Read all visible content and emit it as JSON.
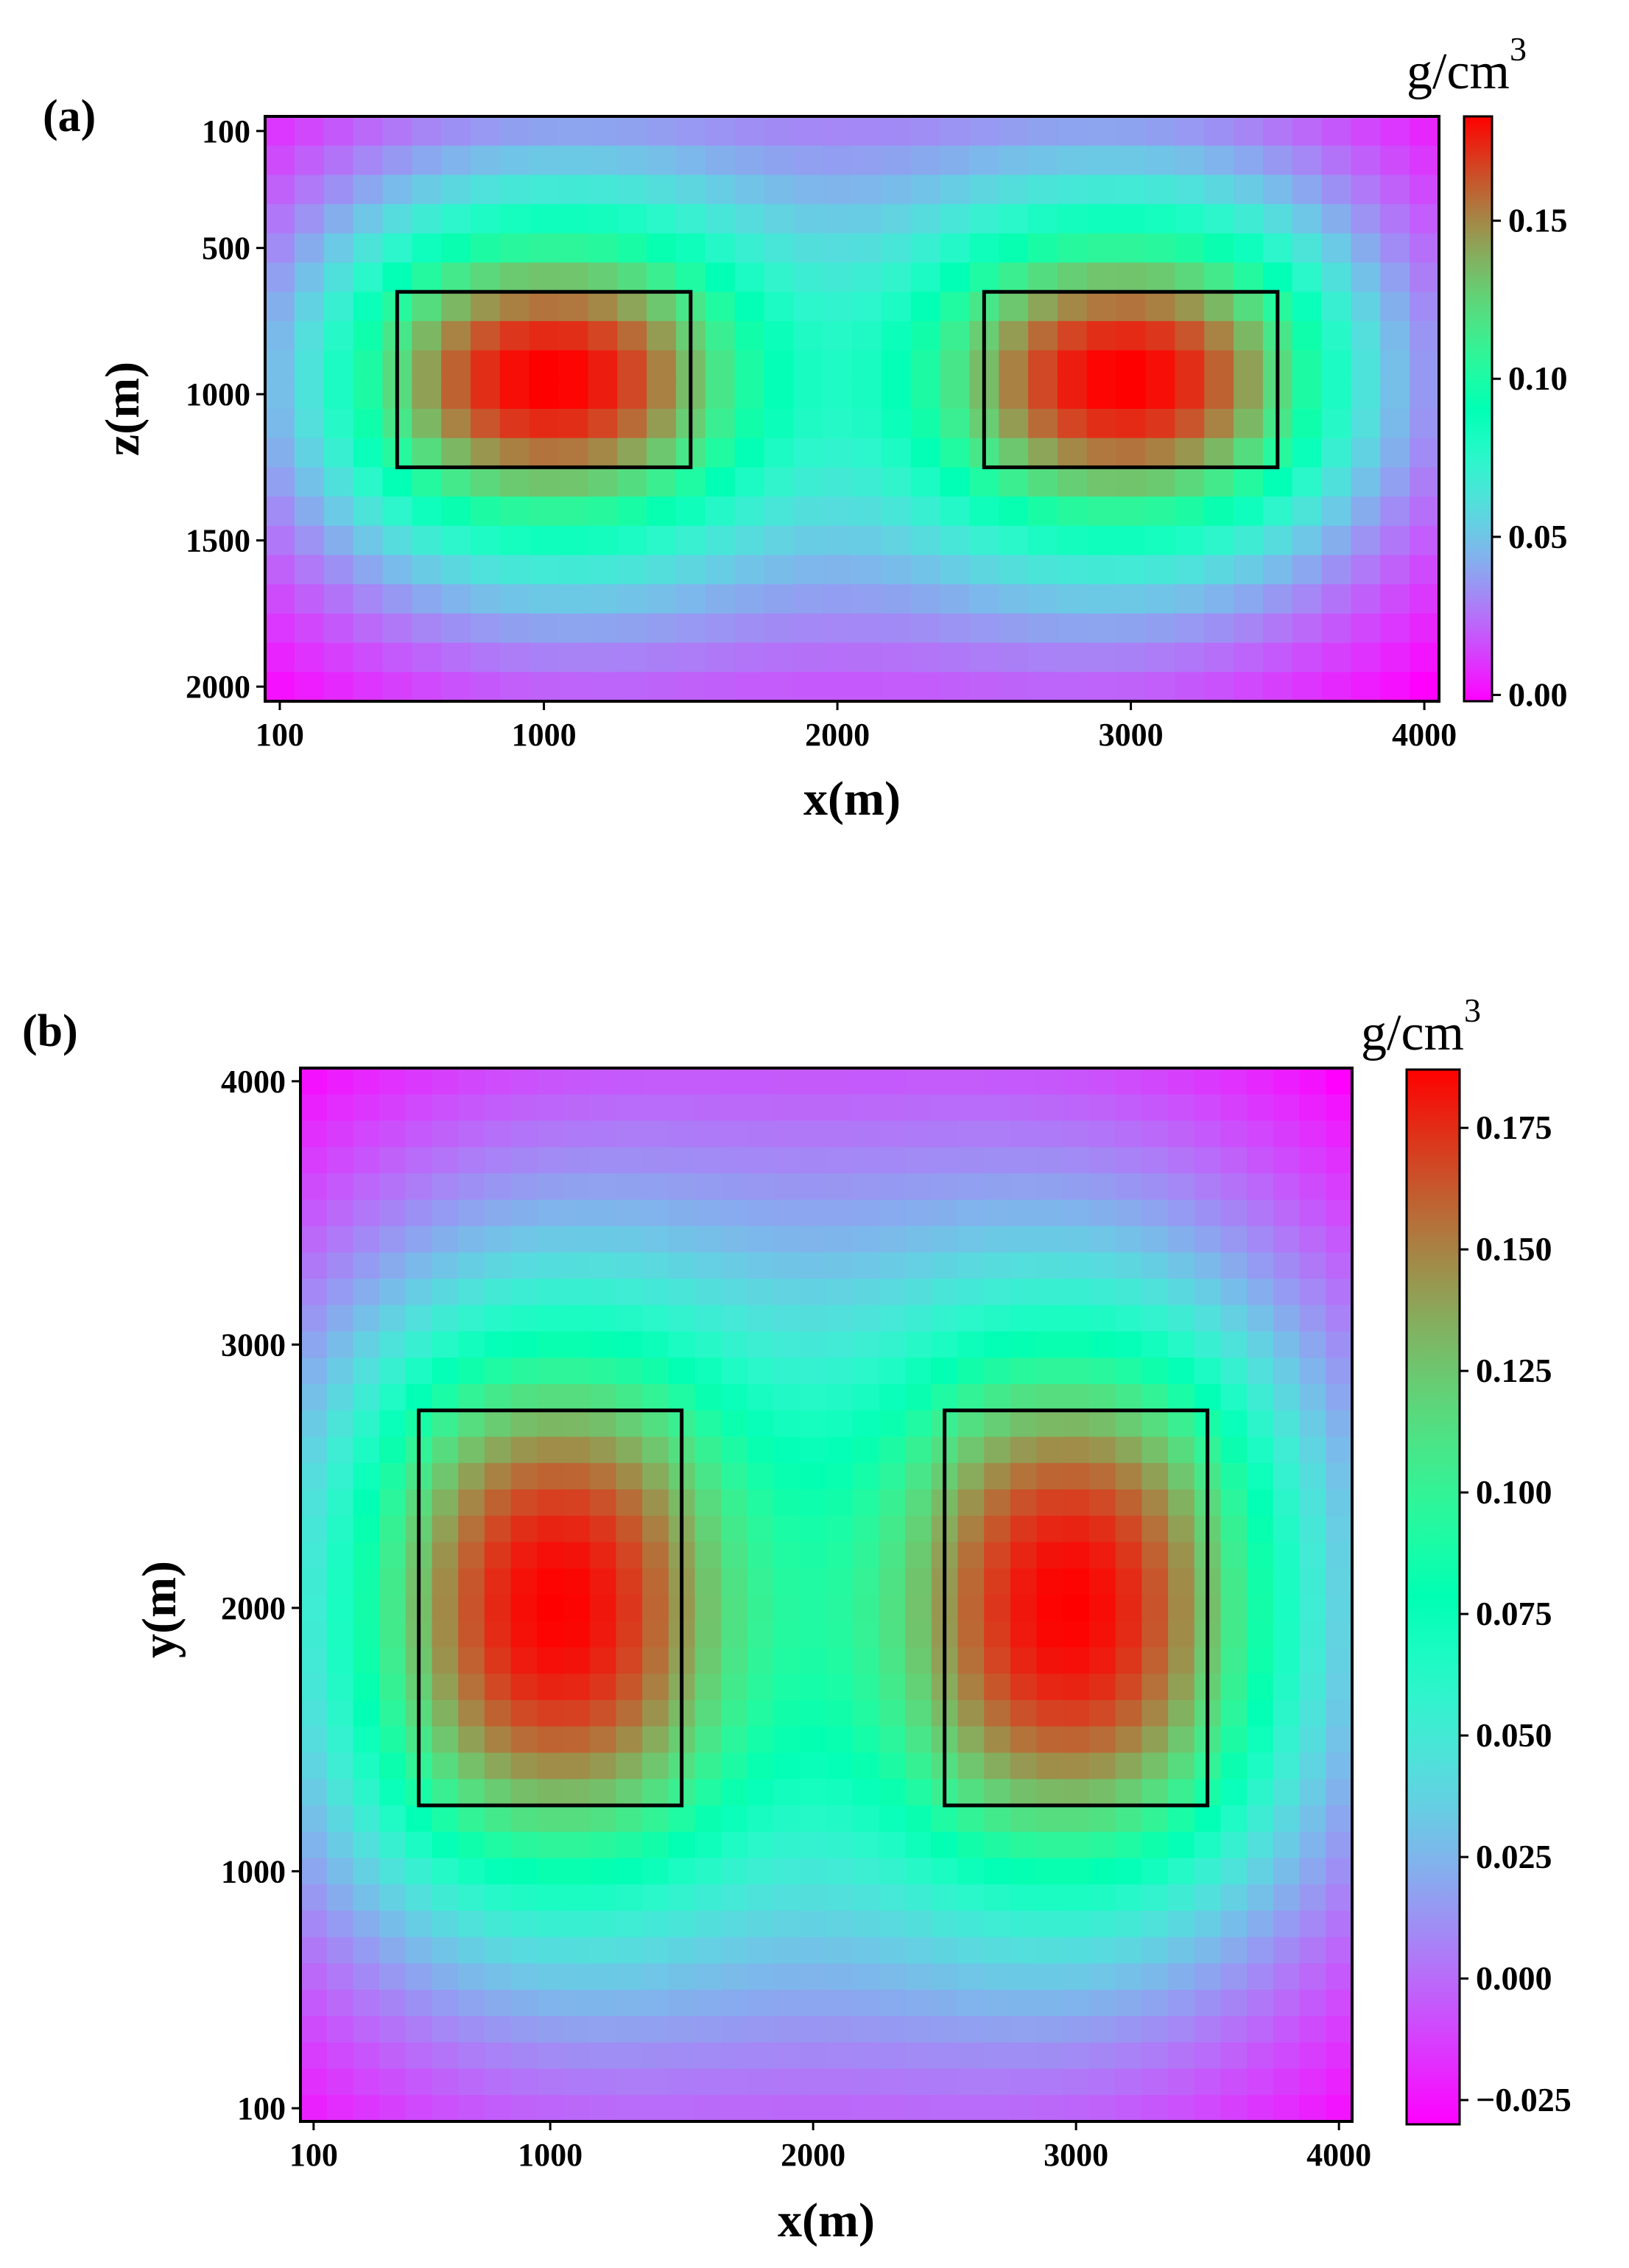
{
  "chart_data": [
    {
      "panel": "(a)",
      "type": "heatmap",
      "xlabel": "x(m)",
      "ylabel": "z(m)",
      "xlim": [
        50,
        4050
      ],
      "ylim": [
        2050,
        50
      ],
      "xticks": [
        100,
        1000,
        2000,
        3000,
        4000
      ],
      "yticks": [
        100,
        500,
        1000,
        1500,
        2000
      ],
      "grid": false,
      "nx": 40,
      "ny": 20,
      "colormap": "rainbow",
      "colorbar": {
        "unit_base": "g/cm",
        "unit_exp": "3",
        "min": -0.002,
        "max": 0.183,
        "ticks": [
          "0.00",
          "0.05",
          "0.10",
          "0.15"
        ]
      },
      "anomaly_bodies": [
        {
          "x": [
            500,
            1500
          ],
          "z": [
            650,
            1250
          ],
          "peak": 0.183
        },
        {
          "x": [
            2500,
            3500
          ],
          "z": [
            650,
            1250
          ],
          "peak": 0.183
        }
      ]
    },
    {
      "panel": "(b)",
      "type": "heatmap",
      "xlabel": "x(m)",
      "ylabel": "y(m)",
      "xlim": [
        50,
        4050
      ],
      "ylim": [
        50,
        4050
      ],
      "xticks": [
        100,
        1000,
        2000,
        3000,
        4000
      ],
      "yticks": [
        100,
        1000,
        2000,
        3000,
        4000
      ],
      "grid": false,
      "nx": 40,
      "ny": 40,
      "colormap": "rainbow",
      "colorbar": {
        "unit_base": "g/cm",
        "unit_exp": "3",
        "min": -0.03,
        "max": 0.187,
        "ticks": [
          "−0.025",
          "0.000",
          "0.025",
          "0.050",
          "0.075",
          "0.100",
          "0.125",
          "0.150",
          "0.175"
        ]
      },
      "anomaly_bodies": [
        {
          "x": [
            500,
            1500
          ],
          "y": [
            1250,
            2750
          ],
          "peak": 0.187
        },
        {
          "x": [
            2500,
            3500
          ],
          "y": [
            1250,
            2750
          ],
          "peak": 0.187
        }
      ]
    }
  ]
}
